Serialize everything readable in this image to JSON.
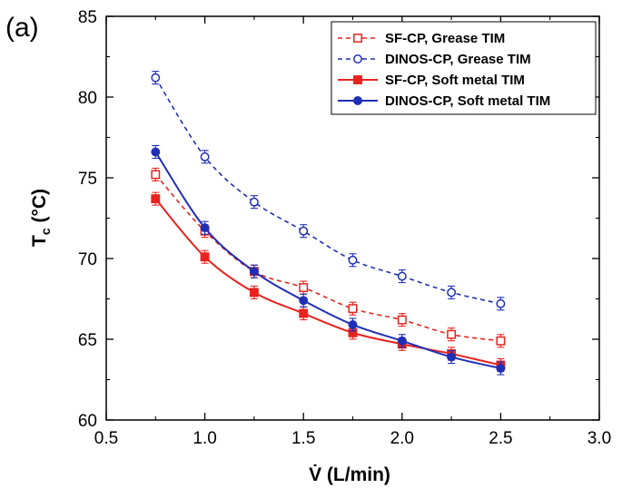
{
  "panel_label": "(a)",
  "chart_data": {
    "type": "line",
    "title": "",
    "xlabel": "V̇ (L/min)",
    "ylabel_main": "T",
    "ylabel_sub": "c",
    "ylabel_unit": " (°C)",
    "xlim": [
      0.5,
      3.0
    ],
    "ylim": [
      60,
      85
    ],
    "x_ticks": [
      "0.5",
      "1.0",
      "1.5",
      "2.0",
      "2.5",
      "3.0"
    ],
    "y_ticks": [
      "60",
      "65",
      "70",
      "75",
      "80",
      "85"
    ],
    "grid": false,
    "legend_position": "top-right",
    "x": [
      0.75,
      1.0,
      1.25,
      1.5,
      1.75,
      2.0,
      2.25,
      2.5
    ],
    "series": [
      {
        "name": "SF-CP, Grease TIM",
        "color": "#e8231f",
        "marker": "square-open",
        "line": "dashed",
        "values": [
          75.2,
          71.7,
          69.2,
          68.2,
          66.9,
          66.2,
          65.3,
          64.9
        ]
      },
      {
        "name": "DINOS-CP, Grease TIM",
        "color": "#1f2fb5",
        "marker": "circle-open",
        "line": "dashed",
        "values": [
          81.2,
          76.3,
          73.5,
          71.7,
          69.9,
          68.9,
          67.9,
          67.2
        ]
      },
      {
        "name": "SF-CP, Soft metal TIM",
        "color": "#e8231f",
        "marker": "square-filled",
        "line": "solid",
        "values": [
          73.7,
          70.1,
          67.9,
          66.6,
          65.4,
          64.7,
          64.1,
          63.4
        ]
      },
      {
        "name": "DINOS-CP, Soft metal TIM",
        "color": "#1f2fb5",
        "marker": "circle-filled",
        "line": "solid",
        "values": [
          76.6,
          71.9,
          69.2,
          67.4,
          65.9,
          64.9,
          63.9,
          63.2
        ]
      }
    ]
  }
}
